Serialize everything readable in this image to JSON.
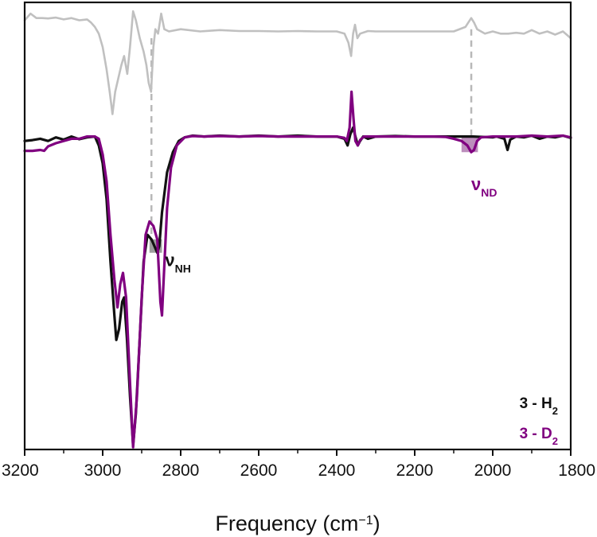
{
  "chart_data": {
    "type": "line",
    "title": "",
    "xlabel": "Frequency (cm",
    "xlabel_sup": "−1",
    "xlabel_close": ")",
    "ylabel": "",
    "xlim": [
      3200,
      1800
    ],
    "x_reversed": true,
    "y_axis_ticks": false,
    "ylim": [
      0,
      1
    ],
    "grid": false,
    "x_ticks": [
      3200,
      3000,
      2800,
      2600,
      2400,
      2200,
      2000,
      1800
    ],
    "x_tick_labels": [
      "3200",
      "3000",
      "2800",
      "2600",
      "2400",
      "2200",
      "2000",
      "1800"
    ],
    "series": [
      {
        "name": "3 - H",
        "name_sub": "2",
        "color": "#111111",
        "points": [
          [
            3200,
            0.69
          ],
          [
            3180,
            0.692
          ],
          [
            3160,
            0.695
          ],
          [
            3140,
            0.69
          ],
          [
            3120,
            0.698
          ],
          [
            3100,
            0.693
          ],
          [
            3080,
            0.7
          ],
          [
            3060,
            0.694
          ],
          [
            3040,
            0.698
          ],
          [
            3020,
            0.7
          ],
          [
            3010,
            0.68
          ],
          [
            3000,
            0.64
          ],
          [
            2990,
            0.56
          ],
          [
            2980,
            0.42
          ],
          [
            2970,
            0.3
          ],
          [
            2965,
            0.245
          ],
          [
            2958,
            0.27
          ],
          [
            2950,
            0.33
          ],
          [
            2945,
            0.34
          ],
          [
            2938,
            0.25
          ],
          [
            2930,
            0.12
          ],
          [
            2922,
            0.01
          ],
          [
            2915,
            0.08
          ],
          [
            2905,
            0.25
          ],
          [
            2895,
            0.42
          ],
          [
            2885,
            0.48
          ],
          [
            2875,
            0.47
          ],
          [
            2865,
            0.45
          ],
          [
            2860,
            0.44
          ],
          [
            2855,
            0.455
          ],
          [
            2848,
            0.53
          ],
          [
            2835,
            0.62
          ],
          [
            2820,
            0.665
          ],
          [
            2805,
            0.69
          ],
          [
            2790,
            0.698
          ],
          [
            2770,
            0.702
          ],
          [
            2740,
            0.7
          ],
          [
            2700,
            0.702
          ],
          [
            2650,
            0.7
          ],
          [
            2600,
            0.702
          ],
          [
            2550,
            0.7
          ],
          [
            2500,
            0.702
          ],
          [
            2450,
            0.7
          ],
          [
            2400,
            0.7
          ],
          [
            2380,
            0.695
          ],
          [
            2372,
            0.68
          ],
          [
            2365,
            0.705
          ],
          [
            2358,
            0.72
          ],
          [
            2352,
            0.7
          ],
          [
            2346,
            0.68
          ],
          [
            2340,
            0.69
          ],
          [
            2332,
            0.7
          ],
          [
            2320,
            0.695
          ],
          [
            2300,
            0.7
          ],
          [
            2250,
            0.701
          ],
          [
            2200,
            0.7
          ],
          [
            2150,
            0.7
          ],
          [
            2100,
            0.7
          ],
          [
            2050,
            0.7
          ],
          [
            2000,
            0.698
          ],
          [
            1990,
            0.7
          ],
          [
            1970,
            0.695
          ],
          [
            1962,
            0.67
          ],
          [
            1955,
            0.693
          ],
          [
            1940,
            0.7
          ],
          [
            1920,
            0.698
          ],
          [
            1900,
            0.702
          ],
          [
            1880,
            0.695
          ],
          [
            1860,
            0.7
          ],
          [
            1840,
            0.698
          ],
          [
            1820,
            0.702
          ],
          [
            1800,
            0.697
          ]
        ]
      },
      {
        "name": "3 - D",
        "name_sub": "2",
        "color": "#800080",
        "points": [
          [
            3200,
            0.668
          ],
          [
            3180,
            0.668
          ],
          [
            3160,
            0.67
          ],
          [
            3150,
            0.668
          ],
          [
            3140,
            0.678
          ],
          [
            3120,
            0.685
          ],
          [
            3100,
            0.69
          ],
          [
            3080,
            0.695
          ],
          [
            3060,
            0.695
          ],
          [
            3040,
            0.7
          ],
          [
            3020,
            0.7
          ],
          [
            3010,
            0.695
          ],
          [
            3000,
            0.66
          ],
          [
            2990,
            0.6
          ],
          [
            2980,
            0.48
          ],
          [
            2970,
            0.38
          ],
          [
            2962,
            0.318
          ],
          [
            2955,
            0.37
          ],
          [
            2948,
            0.395
          ],
          [
            2940,
            0.34
          ],
          [
            2930,
            0.15
          ],
          [
            2922,
            0.005
          ],
          [
            2912,
            0.12
          ],
          [
            2900,
            0.34
          ],
          [
            2890,
            0.48
          ],
          [
            2880,
            0.51
          ],
          [
            2870,
            0.5
          ],
          [
            2860,
            0.47
          ],
          [
            2852,
            0.33
          ],
          [
            2848,
            0.3
          ],
          [
            2842,
            0.41
          ],
          [
            2835,
            0.54
          ],
          [
            2825,
            0.63
          ],
          [
            2810,
            0.68
          ],
          [
            2790,
            0.698
          ],
          [
            2770,
            0.701
          ],
          [
            2740,
            0.7
          ],
          [
            2700,
            0.701
          ],
          [
            2650,
            0.7
          ],
          [
            2600,
            0.701
          ],
          [
            2550,
            0.7
          ],
          [
            2500,
            0.7
          ],
          [
            2450,
            0.7
          ],
          [
            2400,
            0.7
          ],
          [
            2380,
            0.697
          ],
          [
            2374,
            0.69
          ],
          [
            2367,
            0.72
          ],
          [
            2362,
            0.8
          ],
          [
            2357,
            0.74
          ],
          [
            2352,
            0.69
          ],
          [
            2346,
            0.68
          ],
          [
            2340,
            0.692
          ],
          [
            2330,
            0.7
          ],
          [
            2300,
            0.7
          ],
          [
            2250,
            0.7
          ],
          [
            2200,
            0.7
          ],
          [
            2150,
            0.7
          ],
          [
            2120,
            0.699
          ],
          [
            2100,
            0.695
          ],
          [
            2080,
            0.69
          ],
          [
            2065,
            0.68
          ],
          [
            2055,
            0.665
          ],
          [
            2048,
            0.67
          ],
          [
            2040,
            0.69
          ],
          [
            2030,
            0.698
          ],
          [
            2000,
            0.7
          ],
          [
            1980,
            0.7
          ],
          [
            1965,
            0.7
          ],
          [
            1940,
            0.7
          ],
          [
            1900,
            0.702
          ],
          [
            1860,
            0.7
          ],
          [
            1820,
            0.702
          ],
          [
            1800,
            0.698
          ]
        ]
      },
      {
        "name": "",
        "color": "#c0c0c0",
        "points": [
          [
            3200,
            0.96
          ],
          [
            3185,
            0.975
          ],
          [
            3170,
            0.965
          ],
          [
            3155,
            0.965
          ],
          [
            3140,
            0.964
          ],
          [
            3120,
            0.966
          ],
          [
            3100,
            0.962
          ],
          [
            3080,
            0.965
          ],
          [
            3060,
            0.96
          ],
          [
            3040,
            0.962
          ],
          [
            3030,
            0.955
          ],
          [
            3020,
            0.945
          ],
          [
            3010,
            0.93
          ],
          [
            3000,
            0.9
          ],
          [
            2990,
            0.85
          ],
          [
            2982,
            0.8
          ],
          [
            2975,
            0.75
          ],
          [
            2968,
            0.8
          ],
          [
            2960,
            0.83
          ],
          [
            2952,
            0.86
          ],
          [
            2945,
            0.88
          ],
          [
            2937,
            0.84
          ],
          [
            2930,
            0.9
          ],
          [
            2922,
            0.98
          ],
          [
            2915,
            0.96
          ],
          [
            2905,
            0.92
          ],
          [
            2895,
            0.89
          ],
          [
            2888,
            0.86
          ],
          [
            2882,
            0.82
          ],
          [
            2876,
            0.8
          ],
          [
            2870,
            0.9
          ],
          [
            2865,
            0.94
          ],
          [
            2858,
            0.93
          ],
          [
            2850,
            0.975
          ],
          [
            2842,
            0.94
          ],
          [
            2830,
            0.935
          ],
          [
            2800,
            0.94
          ],
          [
            2750,
            0.935
          ],
          [
            2700,
            0.938
          ],
          [
            2650,
            0.936
          ],
          [
            2600,
            0.936
          ],
          [
            2550,
            0.935
          ],
          [
            2500,
            0.936
          ],
          [
            2450,
            0.935
          ],
          [
            2400,
            0.935
          ],
          [
            2380,
            0.93
          ],
          [
            2370,
            0.91
          ],
          [
            2363,
            0.88
          ],
          [
            2358,
            0.93
          ],
          [
            2353,
            0.95
          ],
          [
            2347,
            0.92
          ],
          [
            2340,
            0.93
          ],
          [
            2320,
            0.936
          ],
          [
            2300,
            0.935
          ],
          [
            2250,
            0.935
          ],
          [
            2200,
            0.935
          ],
          [
            2150,
            0.935
          ],
          [
            2100,
            0.935
          ],
          [
            2070,
            0.945
          ],
          [
            2055,
            0.965
          ],
          [
            2048,
            0.955
          ],
          [
            2040,
            0.94
          ],
          [
            2020,
            0.93
          ],
          [
            2000,
            0.935
          ],
          [
            1980,
            0.93
          ],
          [
            1960,
            0.93
          ],
          [
            1940,
            0.932
          ],
          [
            1920,
            0.93
          ],
          [
            1900,
            0.938
          ],
          [
            1880,
            0.93
          ],
          [
            1860,
            0.935
          ],
          [
            1840,
            0.928
          ],
          [
            1820,
            0.935
          ],
          [
            1800,
            0.92
          ]
        ]
      }
    ],
    "annotations": [
      {
        "base": "ν",
        "sub": "NH",
        "color": "#111111",
        "x": 2840,
        "y": 0.41
      },
      {
        "base": "ν",
        "sub": "ND",
        "color": "#800080",
        "x": 2055,
        "y": 0.58
      }
    ],
    "guide_lines": [
      {
        "x": 2875,
        "y_from": 0.92,
        "y_to": 0.47,
        "color": "#b8b8b8"
      },
      {
        "x": 2055,
        "y_from": 0.94,
        "y_to": 0.69,
        "color": "#b8b8b8"
      }
    ],
    "shaded_regions": [
      {
        "x_from": 2880,
        "x_to": 2848,
        "y_top": 0.47,
        "y_bottom": 0.44,
        "color": "#8c8c8c"
      },
      {
        "x_from": 2080,
        "x_to": 2038,
        "y_top": 0.7,
        "y_bottom": 0.665,
        "color": "#b07ab0"
      }
    ],
    "legend": {
      "placement": "bottom-right"
    }
  }
}
